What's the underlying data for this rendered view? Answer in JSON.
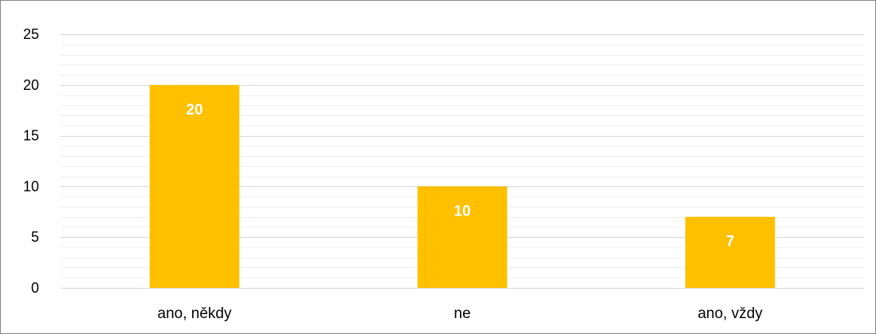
{
  "chart_data": {
    "type": "bar",
    "categories": [
      "ano, někdy",
      "ne",
      "ano, vždy"
    ],
    "values": [
      20,
      10,
      7
    ],
    "data_labels": [
      "20",
      "10",
      "7"
    ],
    "y_ticks": [
      "0",
      "5",
      "10",
      "15",
      "20",
      "25"
    ],
    "ylim": [
      0,
      25
    ],
    "y_major_step": 5,
    "y_minor_step": 1,
    "grid": true,
    "legend": "none",
    "title": "",
    "xlabel": "",
    "ylabel": ""
  },
  "colors": {
    "bar": "#FFC000",
    "major_grid": "#D9D9D9",
    "minor_grid": "#EFEFEF",
    "border": "#888888"
  }
}
